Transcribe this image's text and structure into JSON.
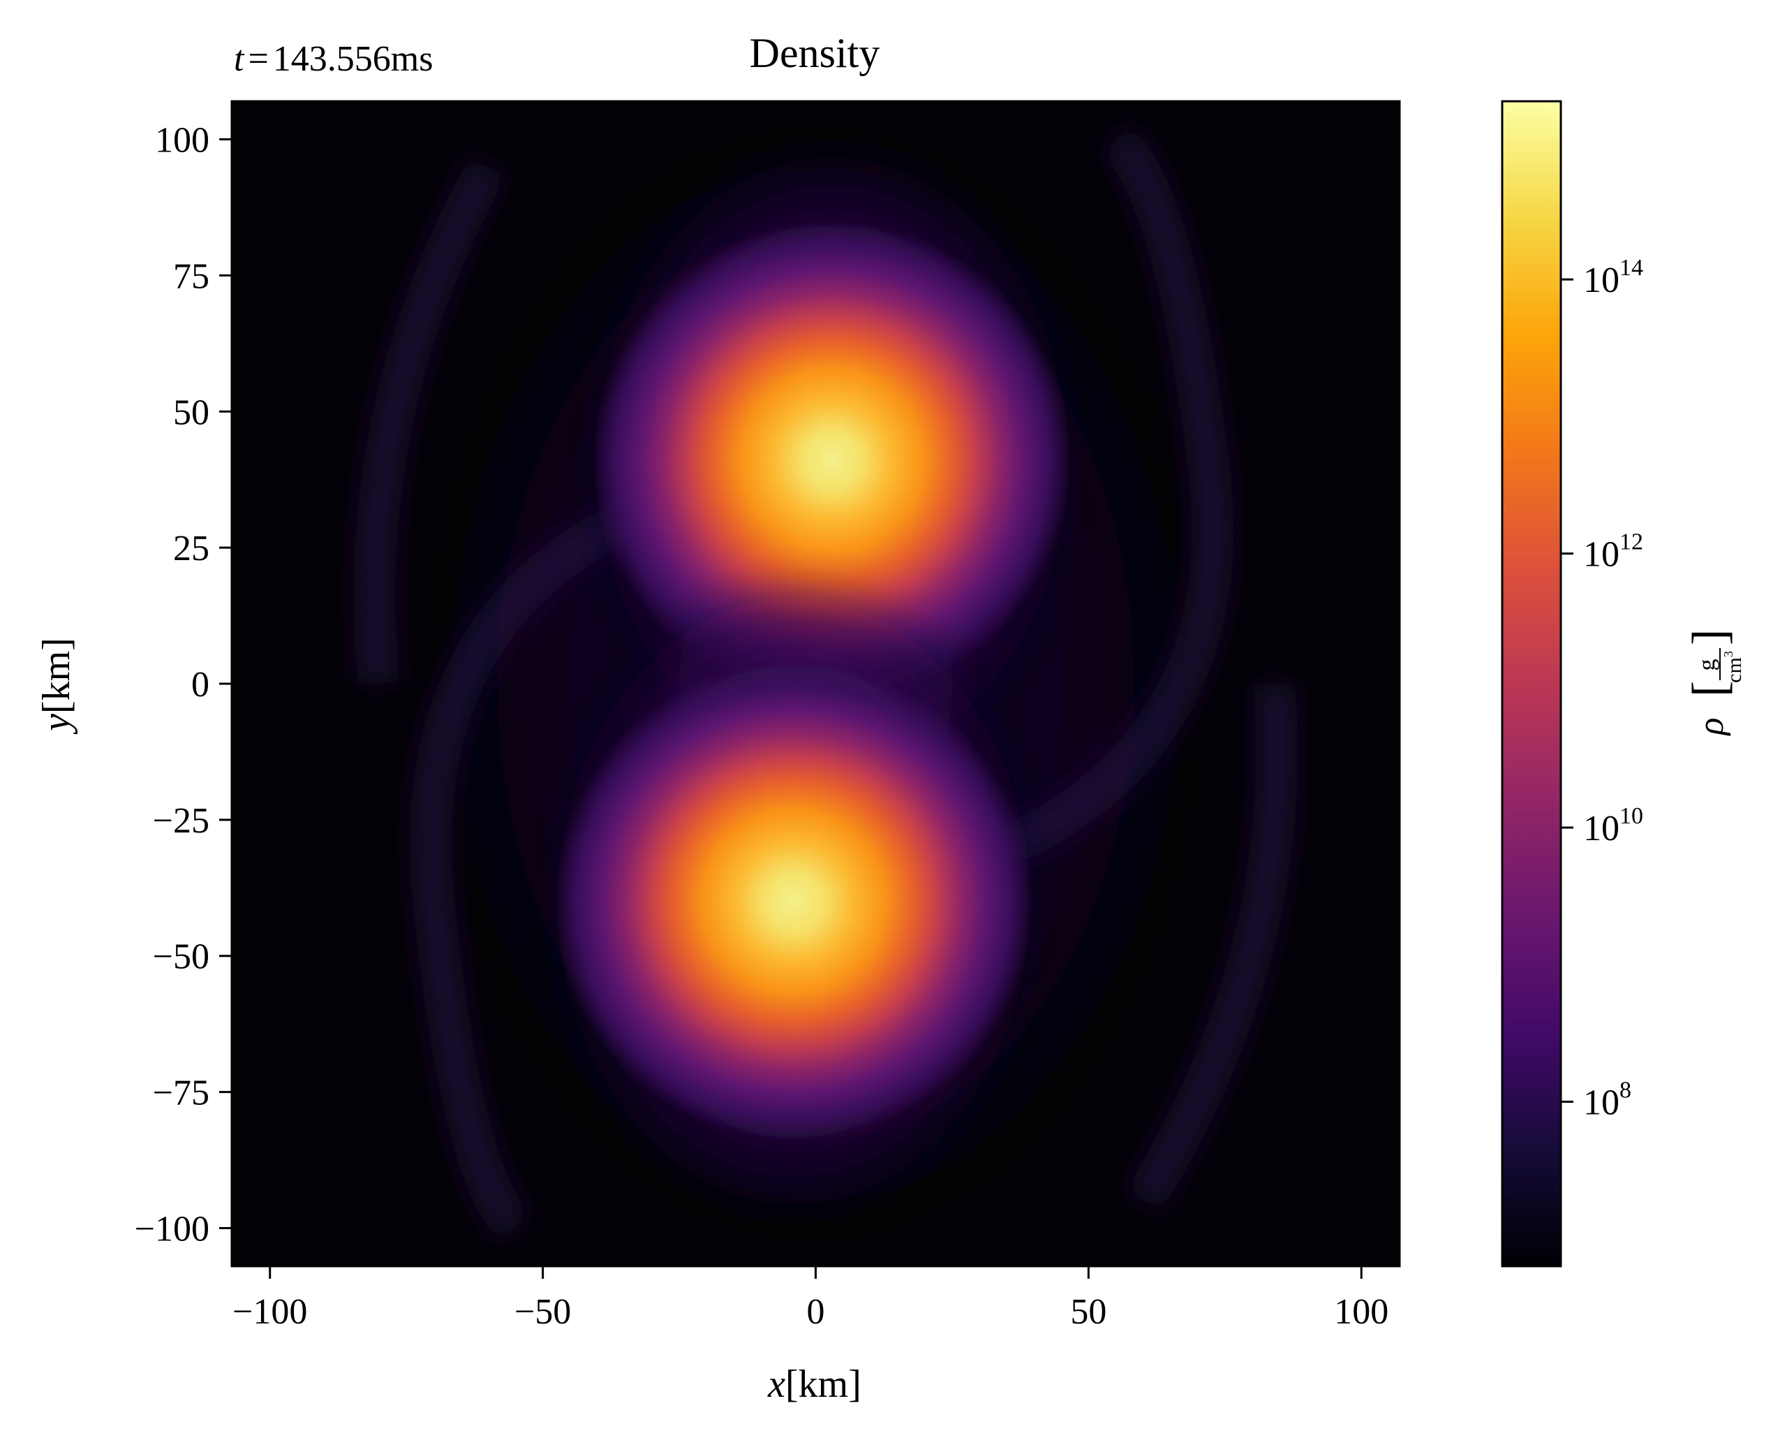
{
  "chart_data": {
    "type": "heatmap",
    "title": "Density",
    "time_label": {
      "var": "t",
      "eq": "=",
      "value": "143.556ms"
    },
    "xlabel": {
      "var": "x",
      "unit": "[km]"
    },
    "ylabel": {
      "var": "y",
      "unit": "[km]"
    },
    "xlim": [
      -107,
      107
    ],
    "ylim": [
      -107,
      107
    ],
    "x_ticks": [
      {
        "value": -100,
        "label": "−100"
      },
      {
        "value": -50,
        "label": "−50"
      },
      {
        "value": 0,
        "label": "0"
      },
      {
        "value": 50,
        "label": "50"
      },
      {
        "value": 100,
        "label": "100"
      }
    ],
    "y_ticks": [
      {
        "value": 100,
        "label": "100"
      },
      {
        "value": 75,
        "label": "75"
      },
      {
        "value": 50,
        "label": "50"
      },
      {
        "value": 25,
        "label": "25"
      },
      {
        "value": 0,
        "label": "0"
      },
      {
        "value": -25,
        "label": "−25"
      },
      {
        "value": -50,
        "label": "−50"
      },
      {
        "value": -75,
        "label": "−75"
      },
      {
        "value": -100,
        "label": "−100"
      }
    ],
    "colorbar": {
      "scale": "log",
      "colormap": "inferno",
      "range_log10": [
        6.8,
        15.3
      ],
      "ticks": [
        {
          "exp": 14,
          "base": "10",
          "sup": "14"
        },
        {
          "exp": 12,
          "base": "10",
          "sup": "12"
        },
        {
          "exp": 10,
          "base": "10",
          "sup": "10"
        },
        {
          "exp": 8,
          "base": "10",
          "sup": "8"
        }
      ],
      "label": {
        "var": "ρ",
        "num": "g",
        "den": "cm",
        "den_sup": "3"
      }
    },
    "features": [
      {
        "name": "upper-core",
        "x": 3,
        "y": 41,
        "peak_log10": 15.0
      },
      {
        "name": "lower-core",
        "x": -4,
        "y": -40,
        "peak_log10": 15.0
      }
    ]
  }
}
